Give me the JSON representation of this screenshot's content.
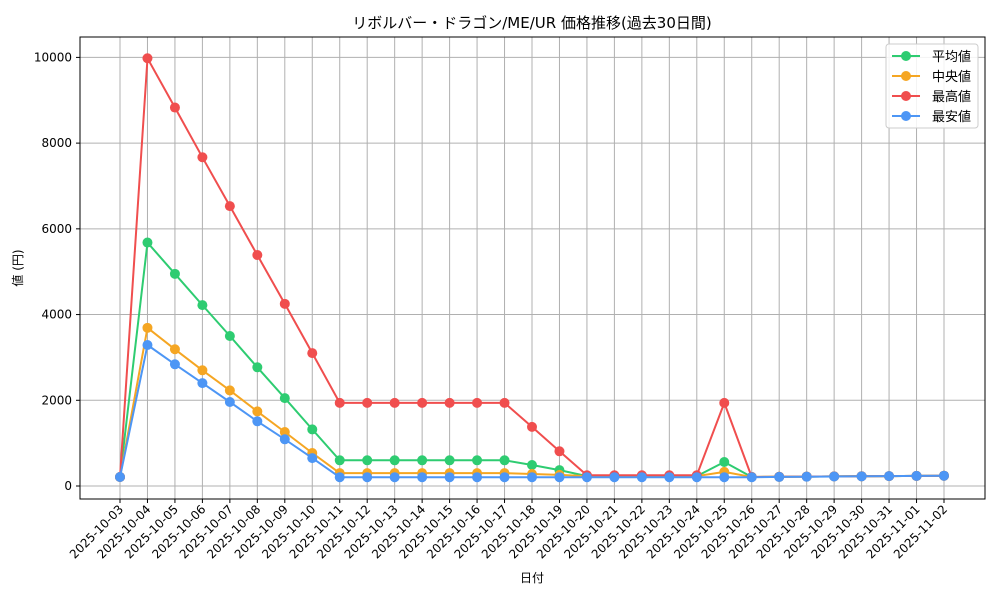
{
  "chart_data": {
    "type": "line",
    "title": "リボルバー・ドラゴン/ME/UR 価格推移(過去30日間)",
    "xlabel": "日付",
    "ylabel": "値 (円)",
    "ylim": [
      -300,
      10500
    ],
    "yticks": [
      0,
      2000,
      4000,
      6000,
      8000,
      10000
    ],
    "grid": true,
    "legend_position": "upper right",
    "categories": [
      "2025-10-03",
      "2025-10-04",
      "2025-10-05",
      "2025-10-06",
      "2025-10-07",
      "2025-10-08",
      "2025-10-09",
      "2025-10-10",
      "2025-10-11",
      "2025-10-12",
      "2025-10-13",
      "2025-10-14",
      "2025-10-15",
      "2025-10-16",
      "2025-10-17",
      "2025-10-18",
      "2025-10-19",
      "2025-10-20",
      "2025-10-21",
      "2025-10-22",
      "2025-10-23",
      "2025-10-24",
      "2025-10-25",
      "2025-10-26",
      "2025-10-27",
      "2025-10-28",
      "2025-10-29",
      "2025-10-30",
      "2025-10-31",
      "2025-11-01",
      "2025-11-02"
    ],
    "series": [
      {
        "name": "平均値",
        "color": "#2ecc71",
        "values": [
          210,
          5680,
          4950,
          4220,
          3500,
          2770,
          2050,
          1320,
          600,
          600,
          600,
          600,
          600,
          600,
          600,
          490,
          370,
          230,
          230,
          230,
          230,
          230,
          560,
          210,
          215,
          220,
          225,
          228,
          230,
          235,
          240
        ]
      },
      {
        "name": "中央値",
        "color": "#f5a623",
        "values": [
          210,
          3690,
          3190,
          2700,
          2230,
          1740,
          1260,
          770,
          300,
          300,
          300,
          300,
          300,
          300,
          300,
          280,
          260,
          230,
          230,
          230,
          230,
          230,
          330,
          210,
          215,
          220,
          225,
          228,
          230,
          235,
          240
        ]
      },
      {
        "name": "最高値",
        "color": "#f04e4e",
        "values": [
          210,
          9980,
          8830,
          7670,
          6530,
          5390,
          4250,
          3100,
          1940,
          1940,
          1940,
          1940,
          1940,
          1940,
          1940,
          1380,
          810,
          250,
          250,
          250,
          250,
          250,
          1940,
          210,
          215,
          220,
          225,
          228,
          230,
          235,
          240
        ]
      },
      {
        "name": "最安値",
        "color": "#4d96f5",
        "values": [
          210,
          3290,
          2840,
          2400,
          1960,
          1510,
          1090,
          650,
          205,
          205,
          205,
          205,
          205,
          205,
          205,
          205,
          205,
          205,
          205,
          205,
          205,
          205,
          205,
          205,
          212,
          218,
          222,
          226,
          230,
          235,
          240
        ]
      }
    ]
  }
}
